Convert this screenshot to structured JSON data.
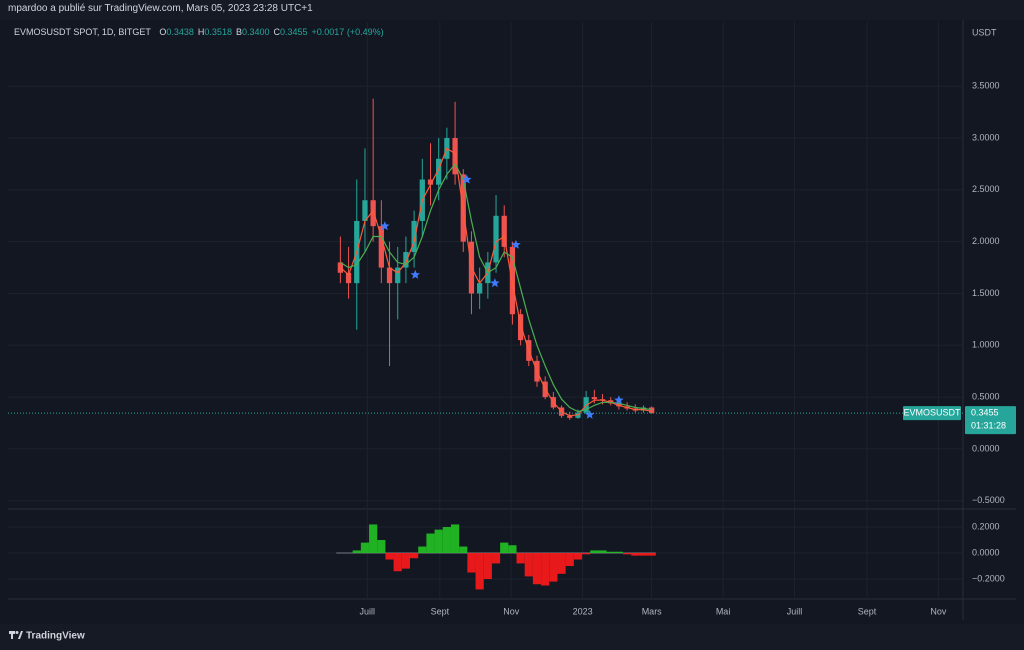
{
  "header": {
    "attribution": "mpardoo a publié sur TradingView.com, Mars 05, 2023 23:28 UTC+1"
  },
  "chart_data": [
    {
      "type": "candlestick",
      "title": "EVMOSUSDT SPOT, 1D, BITGET",
      "ohlc_legend": [
        {
          "label": "O",
          "value": "0.3438"
        },
        {
          "label": "H",
          "value": "0.3518"
        },
        {
          "label": "B",
          "value": "0.3400"
        },
        {
          "label": "C",
          "value": "0.3455"
        }
      ],
      "change": "+0.0017 (+0.49%)",
      "y_unit": "USDT",
      "x": [
        -23,
        -16,
        -9,
        -2,
        5,
        12,
        19,
        26,
        33,
        40,
        47,
        54,
        61,
        68,
        75,
        82,
        89,
        96,
        103,
        110,
        117,
        124,
        131,
        138,
        145,
        152,
        159,
        166,
        173,
        180,
        187,
        194,
        201,
        208,
        215,
        222,
        229,
        236,
        243
      ],
      "open": [
        1.8,
        1.7,
        1.6,
        2.2,
        2.4,
        2.15,
        1.75,
        1.6,
        1.75,
        1.9,
        2.2,
        2.6,
        2.55,
        2.8,
        3.0,
        2.65,
        2.0,
        1.5,
        1.6,
        1.8,
        2.25,
        1.95,
        1.3,
        1.05,
        0.85,
        0.65,
        0.5,
        0.4,
        0.32,
        0.3,
        0.35,
        0.5,
        0.48,
        0.47,
        0.44,
        0.41,
        0.39,
        0.37,
        0.4
      ],
      "high": [
        2.05,
        1.95,
        2.6,
        2.9,
        3.38,
        2.4,
        2.0,
        1.95,
        2.05,
        2.3,
        2.8,
        2.95,
        3.0,
        3.1,
        3.35,
        2.7,
        2.1,
        1.75,
        1.9,
        2.45,
        2.35,
        2.0,
        1.35,
        1.1,
        0.9,
        0.7,
        0.55,
        0.42,
        0.36,
        0.38,
        0.56,
        0.57,
        0.53,
        0.5,
        0.48,
        0.45,
        0.43,
        0.42,
        0.41
      ],
      "low": [
        1.6,
        1.45,
        1.15,
        1.9,
        2.0,
        1.6,
        0.8,
        1.25,
        1.6,
        1.75,
        2.05,
        2.35,
        2.4,
        2.6,
        2.55,
        1.9,
        1.3,
        1.35,
        1.45,
        1.7,
        1.85,
        1.2,
        1.0,
        0.8,
        0.6,
        0.48,
        0.38,
        0.3,
        0.28,
        0.29,
        0.34,
        0.44,
        0.43,
        0.42,
        0.38,
        0.37,
        0.35,
        0.35,
        0.34
      ],
      "close": [
        1.7,
        1.6,
        2.2,
        2.4,
        2.15,
        1.75,
        1.6,
        1.75,
        1.9,
        2.2,
        2.6,
        2.55,
        2.8,
        3.0,
        2.65,
        2.0,
        1.5,
        1.6,
        1.8,
        2.25,
        1.95,
        1.3,
        1.05,
        0.85,
        0.65,
        0.5,
        0.4,
        0.32,
        0.3,
        0.35,
        0.5,
        0.48,
        0.47,
        0.44,
        0.41,
        0.39,
        0.37,
        0.4,
        0.3455
      ],
      "up_color": "#26a69a",
      "down_color": "#ef5350",
      "series": [
        {
          "color": "#ff5a36",
          "values": [
            1.75,
            1.68,
            1.9,
            2.2,
            2.3,
            2.05,
            1.75,
            1.7,
            1.8,
            2.0,
            2.4,
            2.55,
            2.7,
            2.9,
            2.85,
            2.3,
            1.75,
            1.6,
            1.7,
            2.0,
            2.05,
            1.6,
            1.2,
            0.95,
            0.75,
            0.58,
            0.45,
            0.36,
            0.32,
            0.33,
            0.42,
            0.47,
            0.47,
            0.45,
            0.42,
            0.4,
            0.38,
            0.38,
            0.36
          ]
        },
        {
          "color": "#4caf50",
          "values": [
            1.8,
            1.75,
            1.78,
            1.9,
            2.05,
            2.05,
            1.9,
            1.8,
            1.78,
            1.85,
            2.05,
            2.3,
            2.5,
            2.65,
            2.75,
            2.6,
            2.2,
            1.85,
            1.7,
            1.75,
            1.9,
            1.85,
            1.55,
            1.25,
            1.0,
            0.8,
            0.62,
            0.48,
            0.4,
            0.36,
            0.38,
            0.42,
            0.45,
            0.45,
            0.44,
            0.42,
            0.4,
            0.39,
            0.38
          ]
        }
      ],
      "signals": {
        "color": "#3d7bff",
        "x": [
          15,
          41,
          85,
          109,
          127,
          190,
          215
        ],
        "y": [
          2.15,
          1.68,
          2.6,
          1.6,
          1.97,
          0.33,
          0.47
        ]
      },
      "price_line": {
        "label": "EVMOSUSDT",
        "value": 0.3455,
        "countdown": "01:31:28",
        "color": "#26a69a"
      },
      "xlim": [
        -307,
        509
      ],
      "xticks": [
        {
          "value": 0,
          "label": "Juill"
        },
        {
          "value": 62,
          "label": "Sept"
        },
        {
          "value": 123,
          "label": "Nov"
        },
        {
          "value": 184,
          "label": "2023"
        },
        {
          "value": 243,
          "label": "Mars"
        },
        {
          "value": 304,
          "label": "Mai"
        },
        {
          "value": 365,
          "label": "Juill"
        },
        {
          "value": 427,
          "label": "Sept"
        },
        {
          "value": 488,
          "label": "Nov"
        }
      ],
      "ylim": [
        -0.57,
        4.12
      ],
      "yticks": [
        {
          "value": -0.5,
          "label": "−0.5000"
        },
        {
          "value": 0,
          "label": "0.0000"
        },
        {
          "value": 0.5,
          "label": "0.5000"
        },
        {
          "value": 1,
          "label": "1.0000"
        },
        {
          "value": 1.5,
          "label": "1.5000"
        },
        {
          "value": 2,
          "label": "2.0000"
        },
        {
          "value": 2.5,
          "label": "2.5000"
        },
        {
          "value": 3,
          "label": "3.0000"
        },
        {
          "value": 3.5,
          "label": "3.5000"
        }
      ],
      "grid": true
    },
    {
      "type": "bar",
      "x": [
        -23,
        -16,
        -9,
        -2,
        5,
        12,
        19,
        26,
        33,
        40,
        47,
        54,
        61,
        68,
        75,
        82,
        89,
        96,
        103,
        110,
        117,
        124,
        131,
        138,
        145,
        152,
        159,
        166,
        173,
        180,
        187,
        194,
        201,
        208,
        215,
        222,
        229,
        236,
        243
      ],
      "values": [
        0,
        0,
        0.02,
        0.08,
        0.22,
        0.1,
        -0.05,
        -0.14,
        -0.12,
        -0.04,
        0.05,
        0.15,
        0.18,
        0.2,
        0.22,
        0.05,
        -0.15,
        -0.28,
        -0.2,
        -0.08,
        0.08,
        0.06,
        -0.08,
        -0.18,
        -0.24,
        -0.25,
        -0.22,
        -0.16,
        -0.1,
        -0.05,
        -0.01,
        0.02,
        0.02,
        0.01,
        0.01,
        -0.01,
        -0.02,
        -0.02,
        -0.02
      ],
      "pos_color": "#22c322",
      "neg_color": "#ff1a1a",
      "xlim": [
        -307,
        509
      ],
      "ylim": [
        -0.346,
        0.331
      ],
      "yticks": [
        {
          "value": -0.2,
          "label": "−0.2000"
        },
        {
          "value": 0,
          "label": "0.0000"
        },
        {
          "value": 0.2,
          "label": "0.2000"
        }
      ],
      "grid": true
    }
  ],
  "footer": {
    "brand": "TradingView"
  }
}
